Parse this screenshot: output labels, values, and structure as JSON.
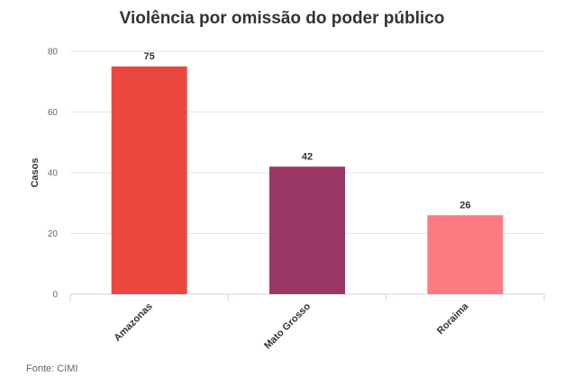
{
  "chart_data": {
    "type": "bar",
    "title": "Violência por omissão do poder público",
    "ylabel": "Casos",
    "xlabel": "",
    "ylim": [
      0,
      80
    ],
    "yticks": [
      0,
      20,
      40,
      60,
      80
    ],
    "grid": true,
    "categories": [
      "Amazonas",
      "Mato Grosso",
      "Roraima"
    ],
    "values": [
      75,
      42,
      26
    ],
    "colors": [
      "#eb473e",
      "#9b3764",
      "#fd7a82"
    ],
    "source": "Fonte: CIMI"
  }
}
